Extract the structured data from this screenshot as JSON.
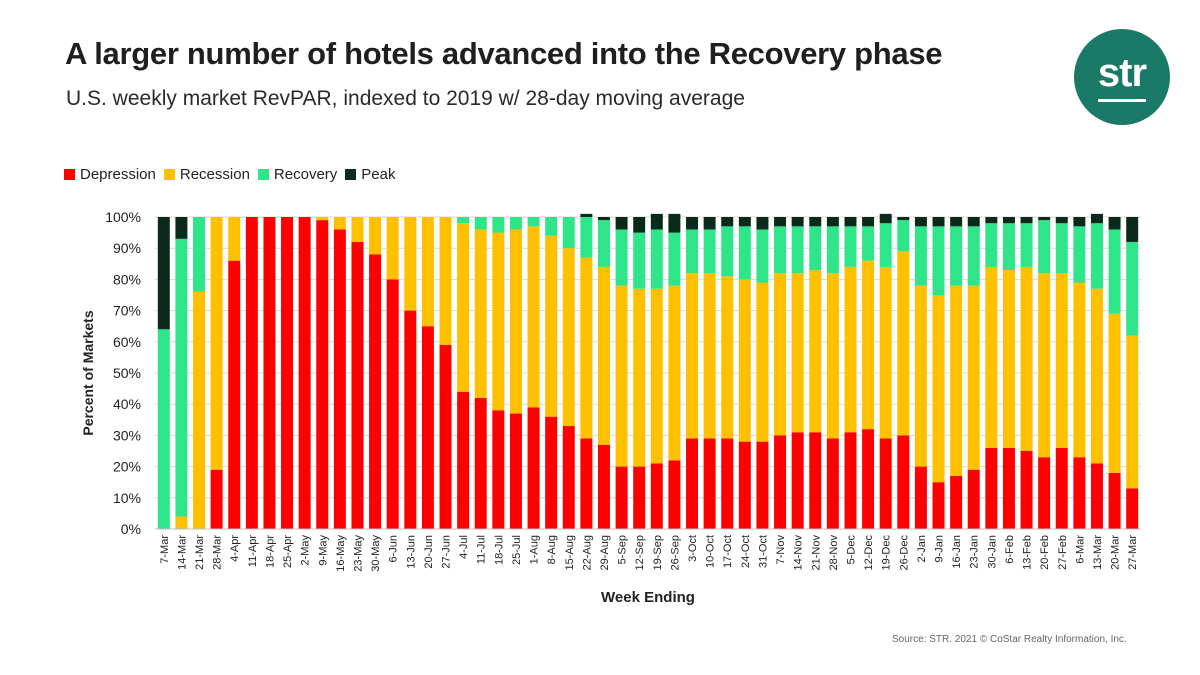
{
  "header": {
    "title": "A larger number of hotels advanced into the Recovery phase",
    "subtitle": "U.S. weekly market RevPAR, indexed to 2019 w/ 28-day moving average"
  },
  "logo": {
    "text": "str"
  },
  "source": "Source: STR. 2021 © CoStar Realty Information, Inc.",
  "colors": {
    "Depression": "#ff0000",
    "Recession": "#ffc000",
    "Recovery": "#2ee58a",
    "Peak": "#0b2a1c"
  },
  "chart_data": {
    "type": "bar",
    "stacked": true,
    "xlabel": "Week Ending",
    "ylabel": "Percent of Markets",
    "ylim": [
      0,
      100
    ],
    "y_ticks": [
      "0%",
      "10%",
      "20%",
      "30%",
      "40%",
      "50%",
      "60%",
      "70%",
      "80%",
      "90%",
      "100%"
    ],
    "legend_position": "top-left",
    "categories": [
      "7-Mar",
      "14-Mar",
      "21-Mar",
      "28-Mar",
      "4-Apr",
      "11-Apr",
      "18-Apr",
      "25-Apr",
      "2-May",
      "9-May",
      "16-May",
      "23-May",
      "30-May",
      "6-Jun",
      "13-Jun",
      "20-Jun",
      "27-Jun",
      "4-Jul",
      "11-Jul",
      "18-Jul",
      "25-Jul",
      "1-Aug",
      "8-Aug",
      "15-Aug",
      "22-Aug",
      "29-Aug",
      "5-Sep",
      "12-Sep",
      "19-Sep",
      "26-Sep",
      "3-Oct",
      "10-Oct",
      "17-Oct",
      "24-Oct",
      "31-Oct",
      "7-Nov",
      "14-Nov",
      "21-Nov",
      "28-Nov",
      "5-Dec",
      "12-Dec",
      "19-Dec",
      "26-Dec",
      "2-Jan",
      "9-Jan",
      "16-Jan",
      "23-Jan",
      "30-Jan",
      "6-Feb",
      "13-Feb",
      "20-Feb",
      "27-Feb",
      "6-Mar",
      "13-Mar",
      "20-Mar",
      "27-Mar"
    ],
    "series": [
      {
        "name": "Depression",
        "values": [
          0,
          0,
          0,
          19,
          86,
          100,
          100,
          100,
          100,
          99,
          96,
          92,
          88,
          80,
          70,
          65,
          59,
          44,
          42,
          38,
          37,
          39,
          36,
          33,
          29,
          27,
          20,
          20,
          21,
          22,
          29,
          29,
          29,
          28,
          28,
          30,
          31,
          31,
          29,
          31,
          32,
          29,
          30,
          20,
          15,
          17,
          19,
          26,
          26,
          25,
          23,
          26,
          23,
          21,
          18,
          13
        ]
      },
      {
        "name": "Recession",
        "values": [
          0,
          4,
          76,
          81,
          14,
          0,
          0,
          0,
          0,
          1,
          4,
          8,
          12,
          20,
          30,
          35,
          41,
          54,
          54,
          57,
          59,
          58,
          58,
          57,
          58,
          57,
          58,
          57,
          56,
          56,
          53,
          53,
          52,
          52,
          51,
          52,
          51,
          52,
          53,
          53,
          54,
          55,
          59,
          58,
          60,
          61,
          59,
          58,
          57,
          59,
          59,
          56,
          56,
          56,
          51,
          49
        ]
      },
      {
        "name": "Recovery",
        "values": [
          64,
          89,
          24,
          0,
          0,
          0,
          0,
          0,
          0,
          0,
          0,
          0,
          0,
          0,
          0,
          0,
          0,
          2,
          4,
          5,
          4,
          3,
          6,
          10,
          13,
          15,
          18,
          18,
          19,
          17,
          14,
          14,
          16,
          17,
          17,
          15,
          15,
          14,
          15,
          13,
          11,
          14,
          10,
          19,
          22,
          19,
          19,
          14,
          15,
          14,
          17,
          16,
          18,
          21,
          27,
          30
        ]
      },
      {
        "name": "Peak",
        "values": [
          36,
          7,
          0,
          0,
          0,
          0,
          0,
          0,
          0,
          0,
          0,
          0,
          0,
          0,
          0,
          0,
          0,
          0,
          0,
          0,
          0,
          0,
          0,
          0,
          1,
          1,
          4,
          5,
          5,
          6,
          4,
          4,
          3,
          3,
          4,
          3,
          3,
          3,
          3,
          3,
          3,
          3,
          1,
          3,
          3,
          3,
          3,
          2,
          2,
          2,
          1,
          2,
          3,
          3,
          4,
          8
        ]
      }
    ]
  }
}
